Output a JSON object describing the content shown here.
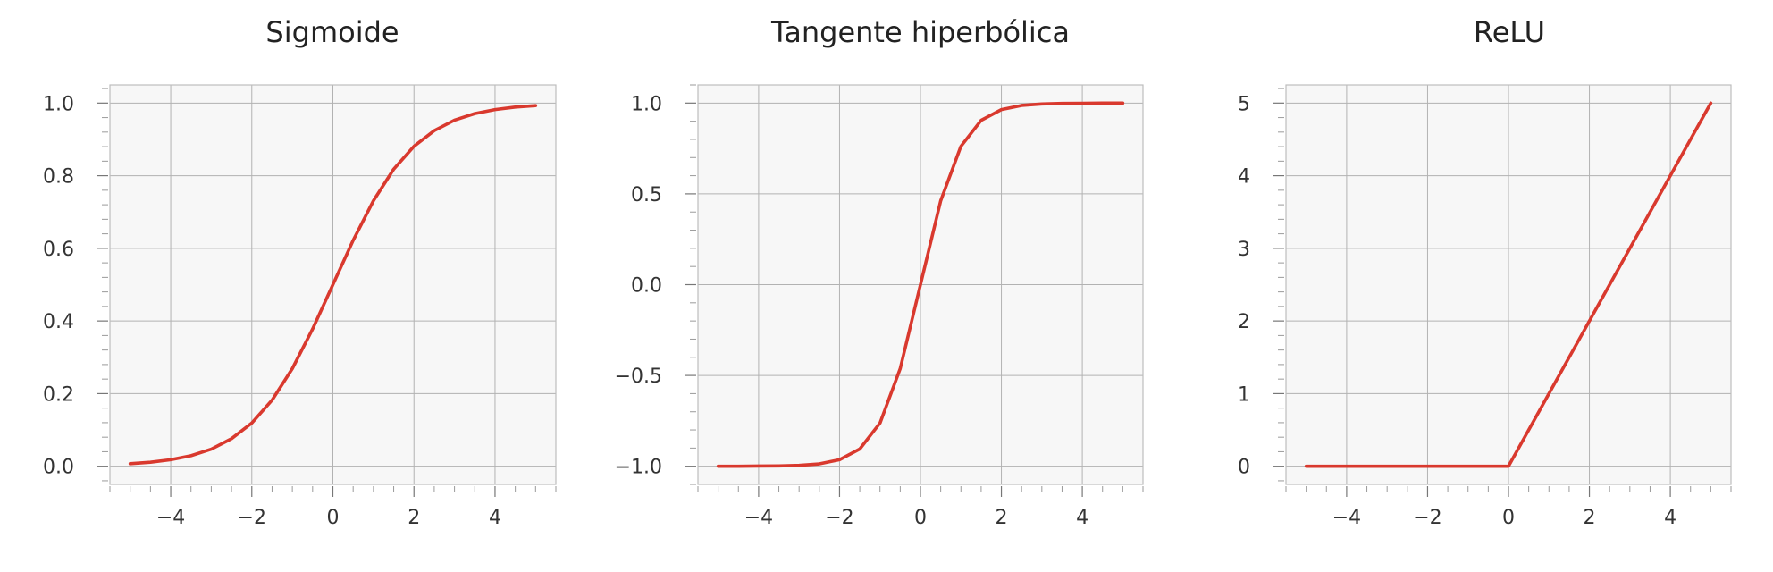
{
  "figure": {
    "line_color": "#d9392e",
    "background": "#f7f7f7",
    "grid_color": "#b2b2b2"
  },
  "chart_data": [
    {
      "type": "line",
      "title": "Sigmoide",
      "xlabel": "",
      "ylabel": "",
      "xlim": [
        -5.5,
        5.5
      ],
      "ylim": [
        -0.05,
        1.05
      ],
      "grid": true,
      "x_ticks": [
        -4,
        -2,
        0,
        2,
        4
      ],
      "x_tick_labels": [
        "−4",
        "−2",
        "0",
        "2",
        "4"
      ],
      "x_minor_step": 0.5,
      "y_ticks": [
        0.0,
        0.2,
        0.4,
        0.6,
        0.8,
        1.0
      ],
      "y_tick_labels": [
        "0.0",
        "0.2",
        "0.4",
        "0.6",
        "0.8",
        "1.0"
      ],
      "y_minor_step": 0.04,
      "series": [
        {
          "x": [
            -5,
            -4.5,
            -4,
            -3.5,
            -3,
            -2.5,
            -2,
            -1.5,
            -1,
            -0.5,
            0,
            0.5,
            1,
            1.5,
            2,
            2.5,
            3,
            3.5,
            4,
            4.5,
            5
          ],
          "values": [
            0.007,
            0.011,
            0.018,
            0.029,
            0.047,
            0.076,
            0.119,
            0.182,
            0.269,
            0.378,
            0.5,
            0.622,
            0.731,
            0.818,
            0.881,
            0.924,
            0.953,
            0.971,
            0.982,
            0.989,
            0.993
          ]
        }
      ]
    },
    {
      "type": "line",
      "title": "Tangente hiperbólica",
      "xlabel": "",
      "ylabel": "",
      "xlim": [
        -5.5,
        5.5
      ],
      "ylim": [
        -1.1,
        1.1
      ],
      "grid": true,
      "x_ticks": [
        -4,
        -2,
        0,
        2,
        4
      ],
      "x_tick_labels": [
        "−4",
        "−2",
        "0",
        "2",
        "4"
      ],
      "x_minor_step": 0.5,
      "y_ticks": [
        -1.0,
        -0.5,
        0.0,
        0.5,
        1.0
      ],
      "y_tick_labels": [
        "−1.0",
        "−0.5",
        "0.0",
        "0.5",
        "1.0"
      ],
      "y_minor_step": 0.1,
      "series": [
        {
          "x": [
            -5,
            -4.5,
            -4,
            -3.5,
            -3,
            -2.5,
            -2,
            -1.5,
            -1,
            -0.5,
            0,
            0.5,
            1,
            1.5,
            2,
            2.5,
            3,
            3.5,
            4,
            4.5,
            5
          ],
          "values": [
            -1.0,
            -1.0,
            -0.999,
            -0.998,
            -0.995,
            -0.987,
            -0.964,
            -0.905,
            -0.762,
            -0.462,
            0.0,
            0.462,
            0.762,
            0.905,
            0.964,
            0.987,
            0.995,
            0.998,
            0.999,
            1.0,
            1.0
          ]
        }
      ]
    },
    {
      "type": "line",
      "title": "ReLU",
      "xlabel": "",
      "ylabel": "",
      "xlim": [
        -5.5,
        5.5
      ],
      "ylim": [
        -0.25,
        5.25
      ],
      "grid": true,
      "x_ticks": [
        -4,
        -2,
        0,
        2,
        4
      ],
      "x_tick_labels": [
        "−4",
        "−2",
        "0",
        "2",
        "4"
      ],
      "x_minor_step": 0.5,
      "y_ticks": [
        0,
        1,
        2,
        3,
        4,
        5
      ],
      "y_tick_labels": [
        "0",
        "1",
        "2",
        "3",
        "4",
        "5"
      ],
      "y_minor_step": 0.2,
      "series": [
        {
          "x": [
            -5,
            0,
            5
          ],
          "values": [
            0,
            0,
            5
          ]
        }
      ]
    }
  ]
}
